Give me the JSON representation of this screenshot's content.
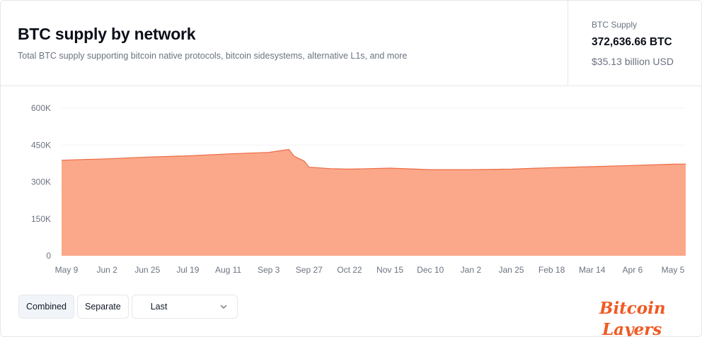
{
  "header": {
    "title": "BTC supply by network",
    "subtitle": "Total BTC supply supporting bitcoin native protocols, bitcoin sidesystems, alternative L1s, and more"
  },
  "supply_summary": {
    "label": "BTC Supply",
    "btc": "372,636.66 BTC",
    "usd": "$35.13 billion USD"
  },
  "controls": {
    "combined_label": "Combined",
    "separate_label": "Separate",
    "range_selected": "Last",
    "active_view": "combined"
  },
  "logo": {
    "line1": "Bitcoin",
    "line2": "Layers"
  },
  "colors": {
    "area_fill": "#fba88a",
    "area_stroke": "#ec6b46",
    "logo": "#f05a22",
    "grid": "#f1f3f5",
    "axis_text": "#6b7280"
  },
  "chart_data": {
    "type": "area",
    "title": "BTC supply by network",
    "xlabel": "",
    "ylabel": "",
    "ylim": [
      0,
      600000
    ],
    "grid": true,
    "yticks": [
      0,
      150000,
      300000,
      450000,
      600000
    ],
    "ytick_labels": [
      "0",
      "150K",
      "300K",
      "450K",
      "600K"
    ],
    "xtick_labels": [
      "May 9",
      "Jun 2",
      "Jun 25",
      "Jul 19",
      "Aug 11",
      "Sep 3",
      "Sep 27",
      "Oct 22",
      "Nov 15",
      "Dec 10",
      "Jan 2",
      "Jan 25",
      "Feb 18",
      "Mar 14",
      "Apr 6",
      "May 5"
    ],
    "series": [
      {
        "name": "",
        "x": [
          "May 9",
          "Jun 2",
          "Jun 25",
          "Jul 19",
          "Aug 11",
          "Sep 3",
          "Sep 12",
          "Sep 15",
          "Sep 18",
          "Sep 21",
          "Sep 24",
          "Sep 27",
          "Oct 10",
          "Oct 22",
          "Nov 15",
          "Dec 10",
          "Jan 2",
          "Jan 25",
          "Feb 18",
          "Mar 14",
          "Apr 6",
          "May 5",
          "May 10"
        ],
        "values": [
          388000,
          394000,
          401000,
          406000,
          414000,
          420000,
          429000,
          432000,
          405000,
          395000,
          385000,
          360000,
          354000,
          352000,
          356000,
          350000,
          350000,
          352000,
          358000,
          362000,
          367000,
          372000,
          372637
        ]
      }
    ]
  }
}
